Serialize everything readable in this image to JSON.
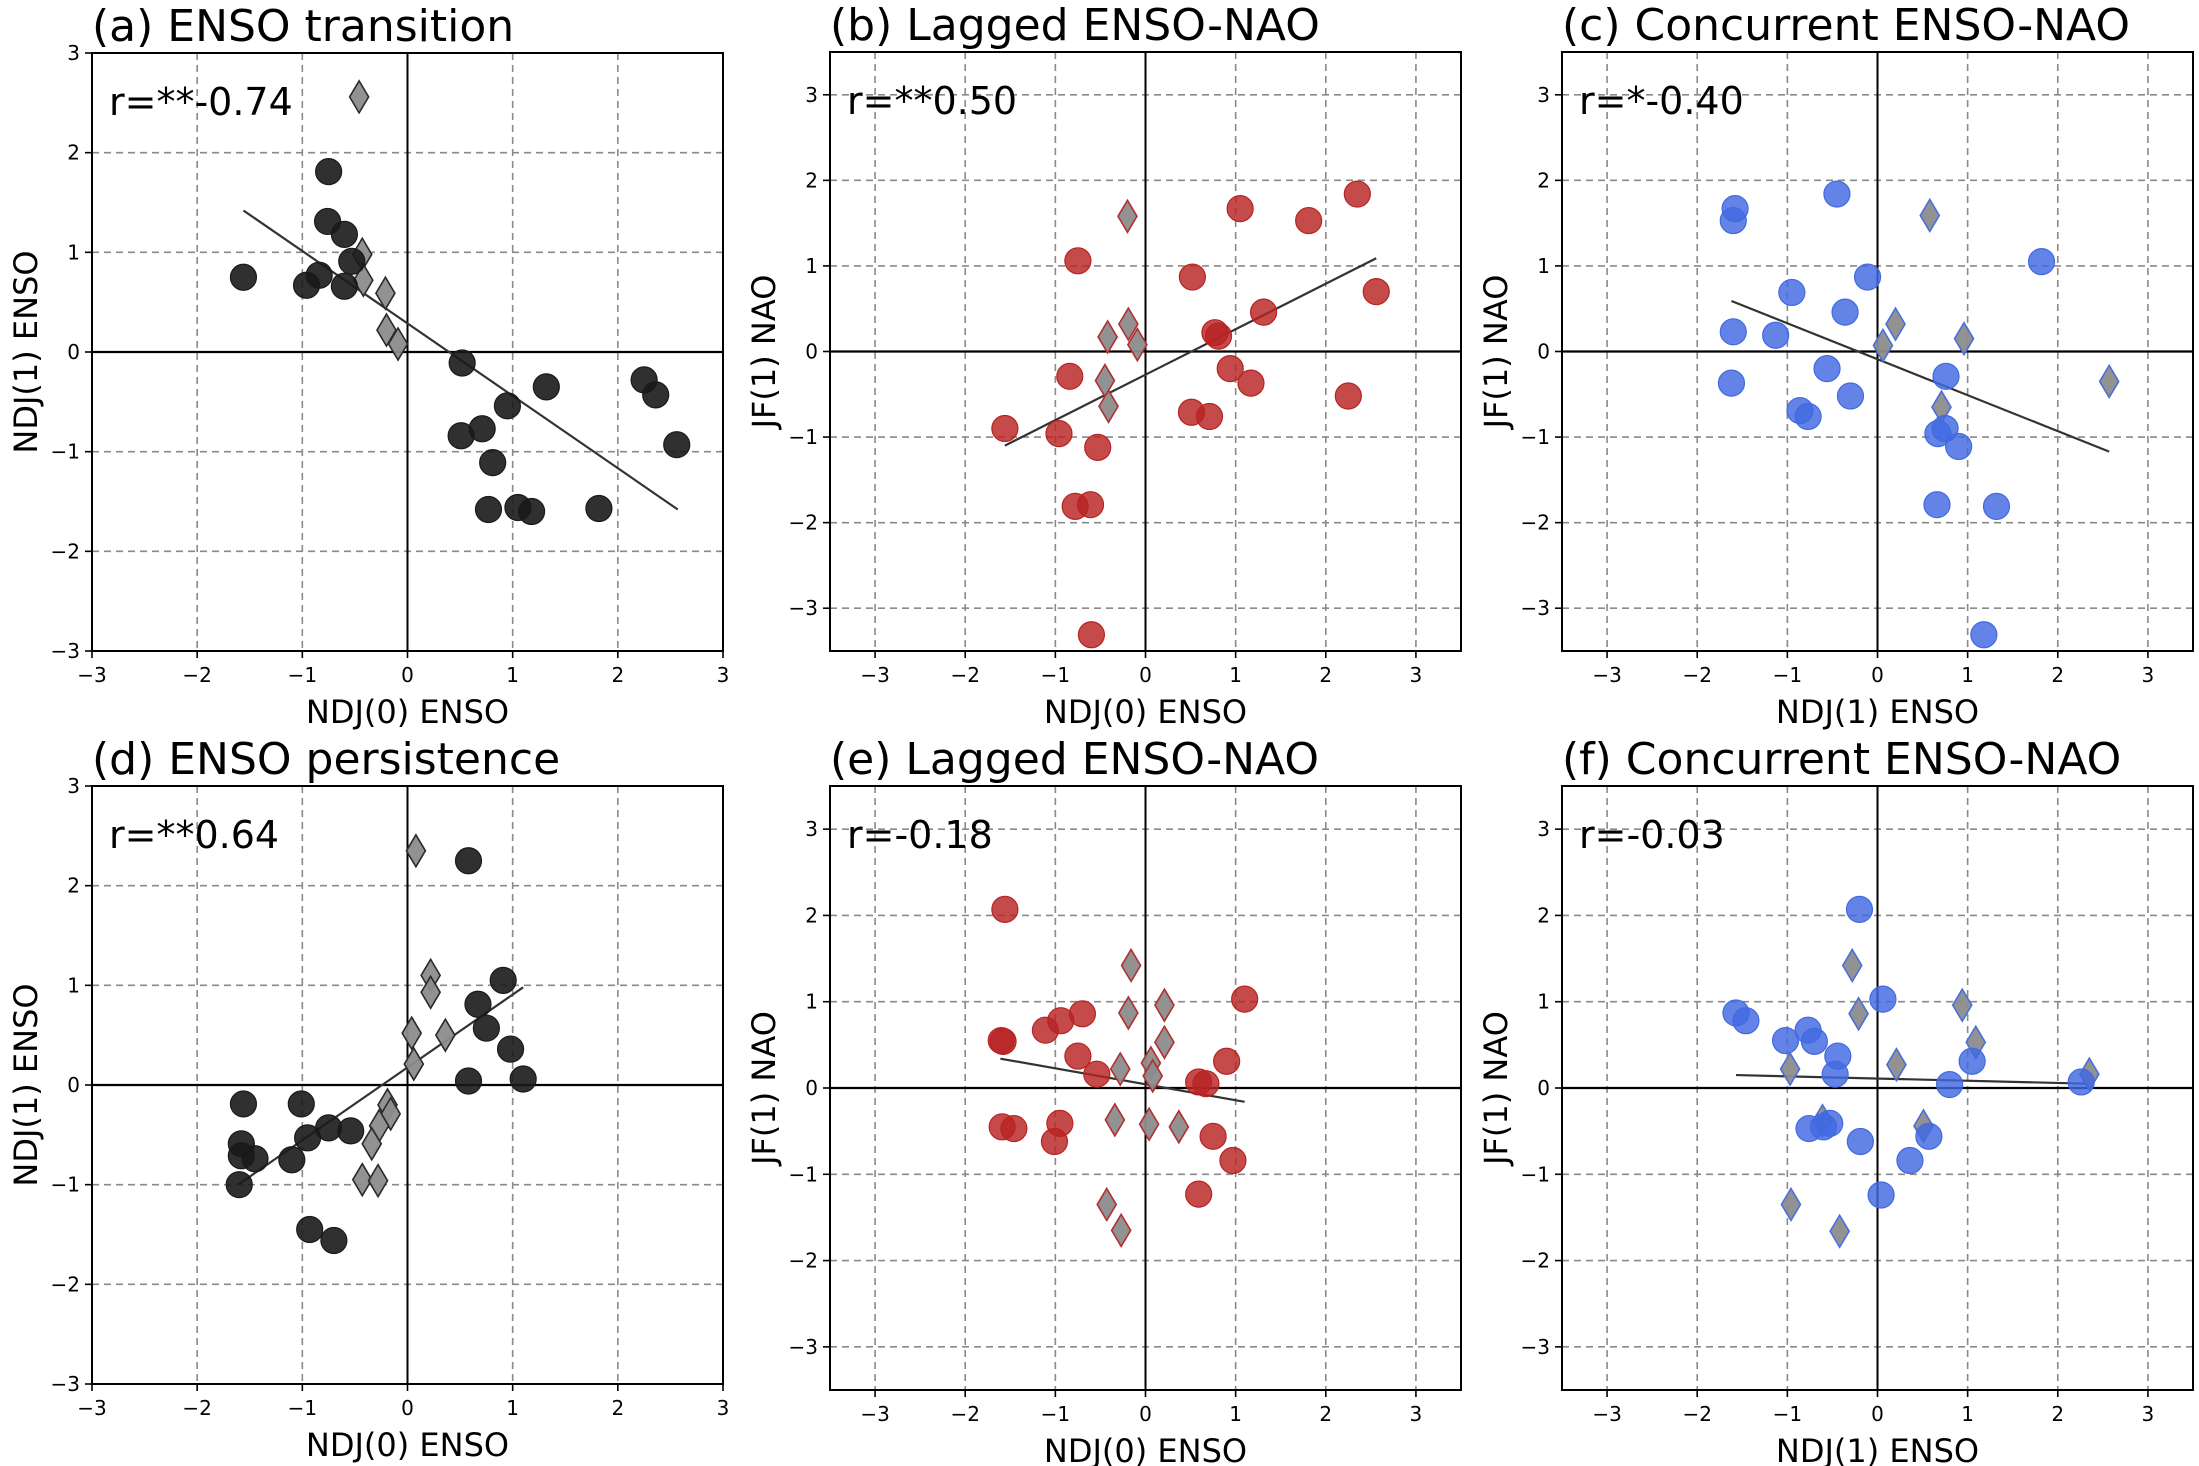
{
  "figure": {
    "colors": {
      "black_marker": "#1a1a1a",
      "red_marker": "#b82323",
      "blue_marker": "#4169e1",
      "diamond_fill": "#8c8c8c",
      "grid": "#8a8a8a",
      "fit_line": "#333333"
    }
  },
  "chart_data": [
    {
      "id": "a",
      "type": "scatter",
      "title": "(a) ENSO transition",
      "annotation": "r=**-0.74",
      "xlabel": "NDJ(0) ENSO",
      "ylabel": "NDJ(1) ENSO",
      "xlim": [
        -3,
        3
      ],
      "ylim": [
        -3,
        3
      ],
      "xticks": [
        "-3",
        "-2",
        "-1",
        "0",
        "1",
        "2",
        "3"
      ],
      "yticks": [
        "-3",
        "-2",
        "-1",
        "0",
        "1",
        "2",
        "3"
      ],
      "xtick_values": [
        -3,
        -2,
        -1,
        0,
        1,
        2,
        3
      ],
      "ytick_values": [
        -3,
        -2,
        -1,
        0,
        1,
        2,
        3
      ],
      "grid": true,
      "color_key": "black_marker",
      "circles": [
        [
          -1.56,
          0.75
        ],
        [
          -0.75,
          1.81
        ],
        [
          -0.76,
          1.31
        ],
        [
          -0.6,
          1.18
        ],
        [
          -0.53,
          0.91
        ],
        [
          -0.84,
          0.77
        ],
        [
          -0.96,
          0.67
        ],
        [
          -0.6,
          0.66
        ],
        [
          0.52,
          -0.11
        ],
        [
          1.32,
          -0.35
        ],
        [
          0.95,
          -0.54
        ],
        [
          0.51,
          -0.84
        ],
        [
          0.71,
          -0.77
        ],
        [
          0.81,
          -1.11
        ],
        [
          0.77,
          -1.58
        ],
        [
          1.05,
          -1.56
        ],
        [
          1.18,
          -1.6
        ],
        [
          1.82,
          -1.57
        ],
        [
          2.25,
          -0.28
        ],
        [
          2.36,
          -0.43
        ],
        [
          2.56,
          -0.93
        ]
      ],
      "diamonds": [
        [
          -0.46,
          2.56
        ],
        [
          -0.43,
          0.98
        ],
        [
          -0.42,
          0.72
        ],
        [
          -0.21,
          0.59
        ],
        [
          -0.2,
          0.22
        ],
        [
          -0.09,
          0.08
        ]
      ],
      "fit_line": [
        [
          -1.56,
          1.42
        ],
        [
          2.57,
          -1.58
        ]
      ]
    },
    {
      "id": "b",
      "type": "scatter",
      "title": "(b) Lagged ENSO-NAO",
      "annotation": "r=**0.50",
      "xlabel": "NDJ(0) ENSO",
      "ylabel": "JF(1) NAO",
      "xlim": [
        -3.5,
        3.5
      ],
      "ylim": [
        -3.5,
        3.5
      ],
      "xticks": [
        "-3",
        "-2",
        "-1",
        "0",
        "1",
        "2",
        "3"
      ],
      "yticks": [
        "-3",
        "-2",
        "-1",
        "0",
        "1",
        "2",
        "3"
      ],
      "xtick_values": [
        -3,
        -2,
        -1,
        0,
        1,
        2,
        3
      ],
      "ytick_values": [
        -3,
        -2,
        -1,
        0,
        1,
        2,
        3
      ],
      "grid": true,
      "color_key": "red_marker",
      "circles": [
        [
          -1.56,
          -0.9
        ],
        [
          -0.96,
          -0.96
        ],
        [
          -0.53,
          -1.12
        ],
        [
          -0.84,
          -0.29
        ],
        [
          -0.75,
          1.06
        ],
        [
          -0.78,
          -1.81
        ],
        [
          -0.61,
          -1.79
        ],
        [
          -0.6,
          -3.31
        ],
        [
          0.52,
          0.87
        ],
        [
          1.05,
          1.67
        ],
        [
          1.81,
          1.53
        ],
        [
          2.35,
          1.84
        ],
        [
          2.56,
          0.7
        ],
        [
          1.31,
          0.46
        ],
        [
          0.77,
          0.22
        ],
        [
          0.81,
          0.18
        ],
        [
          0.94,
          -0.2
        ],
        [
          1.17,
          -0.37
        ],
        [
          0.51,
          -0.71
        ],
        [
          0.71,
          -0.76
        ],
        [
          2.25,
          -0.52
        ]
      ],
      "diamonds": [
        [
          -0.2,
          1.58
        ],
        [
          -0.19,
          0.32
        ],
        [
          -0.42,
          0.17
        ],
        [
          -0.09,
          0.08
        ],
        [
          -0.45,
          -0.34
        ],
        [
          -0.41,
          -0.64
        ]
      ],
      "fit_line": [
        [
          -1.56,
          -1.1
        ],
        [
          2.56,
          1.09
        ]
      ]
    },
    {
      "id": "c",
      "type": "scatter",
      "title": "(c) Concurrent ENSO-NAO",
      "annotation": "r=*-0.40",
      "xlabel": "NDJ(1) ENSO",
      "ylabel": "JF(1) NAO",
      "xlim": [
        -3.5,
        3.5
      ],
      "ylim": [
        -3.5,
        3.5
      ],
      "xticks": [
        "-3",
        "-2",
        "-1",
        "0",
        "1",
        "2",
        "3"
      ],
      "yticks": [
        "-3",
        "-2",
        "-1",
        "0",
        "1",
        "2",
        "3"
      ],
      "xtick_values": [
        -3,
        -2,
        -1,
        0,
        1,
        2,
        3
      ],
      "ytick_values": [
        -3,
        -2,
        -1,
        0,
        1,
        2,
        3
      ],
      "grid": true,
      "color_key": "blue_marker",
      "circles": [
        [
          -1.58,
          1.67
        ],
        [
          -1.6,
          1.53
        ],
        [
          -0.45,
          1.84
        ],
        [
          1.82,
          1.05
        ],
        [
          -0.11,
          0.87
        ],
        [
          -0.95,
          0.69
        ],
        [
          -0.36,
          0.46
        ],
        [
          -1.6,
          0.23
        ],
        [
          -1.13,
          0.19
        ],
        [
          -0.56,
          -0.2
        ],
        [
          -1.62,
          -0.37
        ],
        [
          -0.3,
          -0.52
        ],
        [
          -0.86,
          -0.69
        ],
        [
          -0.77,
          -0.76
        ],
        [
          0.76,
          -0.29
        ],
        [
          0.67,
          -0.96
        ],
        [
          0.75,
          -0.9
        ],
        [
          0.9,
          -1.11
        ],
        [
          0.66,
          -1.79
        ],
        [
          1.32,
          -1.81
        ],
        [
          1.18,
          -3.31
        ]
      ],
      "diamonds": [
        [
          0.58,
          1.59
        ],
        [
          0.2,
          0.32
        ],
        [
          0.06,
          0.07
        ],
        [
          0.96,
          0.15
        ],
        [
          0.71,
          -0.65
        ],
        [
          2.57,
          -0.35
        ]
      ],
      "fit_line": [
        [
          -1.62,
          0.59
        ],
        [
          2.57,
          -1.17
        ]
      ]
    },
    {
      "id": "d",
      "type": "scatter",
      "title": "(d) ENSO persistence",
      "annotation": "r=**0.64",
      "xlabel": "NDJ(0) ENSO",
      "ylabel": "NDJ(1) ENSO",
      "xlim": [
        -3,
        3
      ],
      "ylim": [
        -3,
        3
      ],
      "xticks": [
        "-3",
        "-2",
        "-1",
        "0",
        "1",
        "2",
        "3"
      ],
      "yticks": [
        "-3",
        "-2",
        "-1",
        "0",
        "1",
        "2",
        "3"
      ],
      "xtick_values": [
        -3,
        -2,
        -1,
        0,
        1,
        2,
        3
      ],
      "ytick_values": [
        -3,
        -2,
        -1,
        0,
        1,
        2,
        3
      ],
      "grid": true,
      "color_key": "black_marker",
      "circles": [
        [
          -1.56,
          -0.19
        ],
        [
          -1.58,
          -0.59
        ],
        [
          -1.58,
          -0.71
        ],
        [
          -1.45,
          -0.74
        ],
        [
          -1.6,
          -1.0
        ],
        [
          -1.1,
          -0.75
        ],
        [
          -1.01,
          -0.19
        ],
        [
          -0.95,
          -0.53
        ],
        [
          -0.75,
          -0.43
        ],
        [
          -0.54,
          -0.46
        ],
        [
          -0.93,
          -1.45
        ],
        [
          -0.7,
          -1.56
        ],
        [
          0.58,
          2.25
        ],
        [
          0.91,
          1.05
        ],
        [
          0.67,
          0.81
        ],
        [
          0.75,
          0.57
        ],
        [
          0.98,
          0.36
        ],
        [
          0.58,
          0.04
        ],
        [
          1.1,
          0.06
        ]
      ],
      "diamonds": [
        [
          0.08,
          2.35
        ],
        [
          0.22,
          1.1
        ],
        [
          0.22,
          0.93
        ],
        [
          0.04,
          0.52
        ],
        [
          0.36,
          0.5
        ],
        [
          0.06,
          0.21
        ],
        [
          -0.19,
          -0.2
        ],
        [
          -0.16,
          -0.29
        ],
        [
          -0.27,
          -0.41
        ],
        [
          -0.34,
          -0.59
        ],
        [
          -0.43,
          -0.95
        ],
        [
          -0.28,
          -0.96
        ]
      ],
      "fit_line": [
        [
          -1.61,
          -1.0
        ],
        [
          1.1,
          0.98
        ]
      ]
    },
    {
      "id": "e",
      "type": "scatter",
      "title": "(e) Lagged ENSO-NAO",
      "annotation": "r=-0.18",
      "xlabel": "NDJ(0) ENSO",
      "ylabel": "JF(1) NAO",
      "xlim": [
        -3.5,
        3.5
      ],
      "ylim": [
        -3.5,
        3.5
      ],
      "xticks": [
        "-3",
        "-2",
        "-1",
        "0",
        "1",
        "2",
        "3"
      ],
      "yticks": [
        "-3",
        "-2",
        "-1",
        "0",
        "1",
        "2",
        "3"
      ],
      "xtick_values": [
        -3,
        -2,
        -1,
        0,
        1,
        2,
        3
      ],
      "ytick_values": [
        -3,
        -2,
        -1,
        0,
        1,
        2,
        3
      ],
      "grid": true,
      "color_key": "red_marker",
      "circles": [
        [
          -1.56,
          2.07
        ],
        [
          -1.6,
          0.55
        ],
        [
          -1.58,
          0.54
        ],
        [
          -1.11,
          0.67
        ],
        [
          -0.94,
          0.78
        ],
        [
          -0.7,
          0.86
        ],
        [
          -0.75,
          0.37
        ],
        [
          -0.54,
          0.16
        ],
        [
          0.59,
          0.07
        ],
        [
          0.67,
          0.05
        ],
        [
          0.9,
          0.31
        ],
        [
          1.1,
          1.03
        ],
        [
          -1.59,
          -0.45
        ],
        [
          -1.46,
          -0.47
        ],
        [
          -0.95,
          -0.41
        ],
        [
          -1.01,
          -0.62
        ],
        [
          0.75,
          -0.56
        ],
        [
          0.97,
          -0.84
        ],
        [
          0.59,
          -1.23
        ]
      ],
      "diamonds": [
        [
          -0.16,
          1.42
        ],
        [
          -0.19,
          0.87
        ],
        [
          0.21,
          0.96
        ],
        [
          0.21,
          0.53
        ],
        [
          -0.28,
          0.22
        ],
        [
          0.06,
          0.29
        ],
        [
          0.08,
          0.14
        ],
        [
          -0.34,
          -0.37
        ],
        [
          0.04,
          -0.42
        ],
        [
          0.37,
          -0.45
        ],
        [
          -0.43,
          -1.35
        ],
        [
          -0.27,
          -1.65
        ]
      ],
      "fit_line": [
        [
          -1.61,
          0.34
        ],
        [
          1.1,
          -0.16
        ]
      ]
    },
    {
      "id": "f",
      "type": "scatter",
      "title": "(f) Concurrent ENSO-NAO",
      "annotation": "r=-0.03",
      "xlabel": "NDJ(1) ENSO",
      "ylabel": "JF(1) NAO",
      "xlim": [
        -3.5,
        3.5
      ],
      "ylim": [
        -3.5,
        3.5
      ],
      "xticks": [
        "-3",
        "-2",
        "-1",
        "0",
        "1",
        "2",
        "3"
      ],
      "yticks": [
        "-3",
        "-2",
        "-1",
        "0",
        "1",
        "2",
        "3"
      ],
      "xtick_values": [
        -3,
        -2,
        -1,
        0,
        1,
        2,
        3
      ],
      "ytick_values": [
        -3,
        -2,
        -1,
        0,
        1,
        2,
        3
      ],
      "grid": true,
      "color_key": "blue_marker",
      "circles": [
        [
          -1.57,
          0.87
        ],
        [
          -1.46,
          0.78
        ],
        [
          -1.02,
          0.55
        ],
        [
          -0.77,
          0.67
        ],
        [
          -0.7,
          0.54
        ],
        [
          -0.44,
          0.37
        ],
        [
          -0.47,
          0.16
        ],
        [
          0.06,
          1.03
        ],
        [
          1.05,
          0.31
        ],
        [
          0.8,
          0.04
        ],
        [
          -0.76,
          -0.47
        ],
        [
          -0.6,
          -0.45
        ],
        [
          -0.53,
          -0.41
        ],
        [
          -0.19,
          -0.62
        ],
        [
          0.57,
          -0.56
        ],
        [
          0.36,
          -0.84
        ],
        [
          0.04,
          -1.24
        ],
        [
          -0.2,
          2.07
        ],
        [
          2.26,
          0.07
        ]
      ],
      "diamonds": [
        [
          -0.28,
          1.42
        ],
        [
          -0.21,
          0.86
        ],
        [
          -0.97,
          0.22
        ],
        [
          0.21,
          0.27
        ],
        [
          0.94,
          0.96
        ],
        [
          1.09,
          0.53
        ],
        [
          -0.61,
          -0.38
        ],
        [
          0.51,
          -0.44
        ],
        [
          -0.96,
          -1.35
        ],
        [
          -0.42,
          -1.66
        ],
        [
          2.35,
          0.16
        ]
      ],
      "fit_line": [
        [
          -1.57,
          0.15
        ],
        [
          2.33,
          0.05
        ]
      ]
    }
  ]
}
